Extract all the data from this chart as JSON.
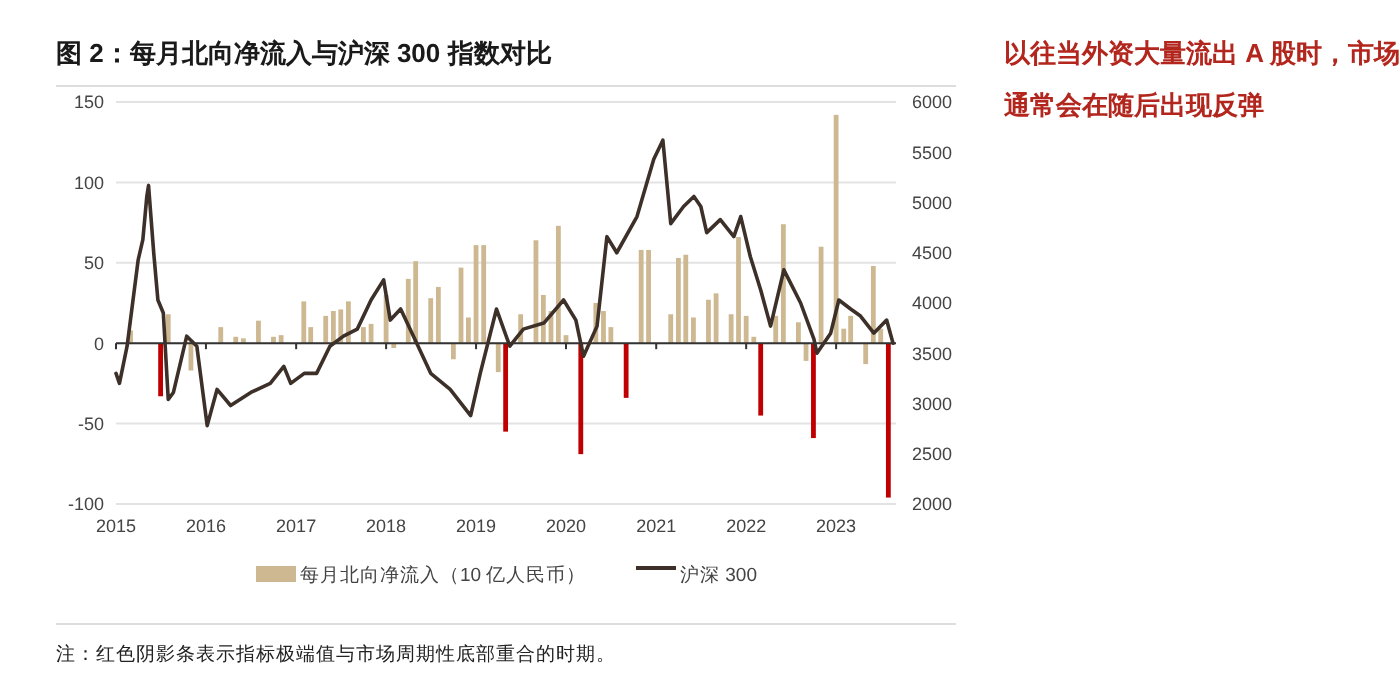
{
  "chart_data": {
    "type": "bar",
    "title": "图 2：每月北向净流入与沪深 300 指数对比",
    "annotations": [
      "以往当外资大量流出 A 股时，市场通常会在随后出现反弹",
      "注：红色阴影条表示指标极端值与市场周期性底部重合的时期。"
    ],
    "xlim": [
      "2015-01",
      "2023-09"
    ],
    "xticks": [
      "2015",
      "2016",
      "2017",
      "2018",
      "2019",
      "2020",
      "2021",
      "2022",
      "2023"
    ],
    "ylim": [
      -100,
      150
    ],
    "yticks": [
      -100,
      -50,
      0,
      50,
      100,
      150
    ],
    "y2lim": [
      2000,
      6000
    ],
    "y2ticks": [
      2000,
      2500,
      3000,
      3500,
      4000,
      4500,
      5000,
      5500,
      6000
    ],
    "grid": "y",
    "legend": "bottom",
    "series": [
      {
        "name": "每月北向净流入（10 亿人民币）",
        "color": "#cdb891",
        "x": [
          "2015-03",
          "2015-07",
          "2015-08",
          "2015-11",
          "2016-03",
          "2016-05",
          "2016-06",
          "2016-08",
          "2016-10",
          "2016-11",
          "2017-02",
          "2017-03",
          "2017-05",
          "2017-06",
          "2017-07",
          "2017-08",
          "2017-10",
          "2017-11",
          "2018-01",
          "2018-02",
          "2018-04",
          "2018-05",
          "2018-07",
          "2018-08",
          "2018-10",
          "2018-11",
          "2018-12",
          "2019-01",
          "2019-02",
          "2019-04",
          "2019-05",
          "2019-07",
          "2019-09",
          "2019-10",
          "2019-11",
          "2019-12",
          "2020-01",
          "2020-03",
          "2020-05",
          "2020-06",
          "2020-07",
          "2020-09",
          "2020-11",
          "2020-12",
          "2021-03",
          "2021-04",
          "2021-05",
          "2021-06",
          "2021-08",
          "2021-09",
          "2021-11",
          "2021-12",
          "2022-01",
          "2022-02",
          "2022-03",
          "2022-05",
          "2022-06",
          "2022-08",
          "2022-09",
          "2022-10",
          "2022-11",
          "2023-01",
          "2023-02",
          "2023-03",
          "2023-05",
          "2023-06",
          "2023-07",
          "2023-08"
        ],
        "values": [
          8,
          -33,
          18,
          -17,
          10,
          4,
          3,
          14,
          4,
          5,
          26,
          10,
          17,
          20,
          21,
          26,
          10,
          12,
          30,
          -3,
          40,
          51,
          28,
          35,
          -10,
          47,
          16,
          61,
          61,
          -18,
          -55,
          18,
          64,
          30,
          20,
          73,
          5,
          -69,
          25,
          20,
          10,
          -34,
          58,
          58,
          18,
          53,
          55,
          16,
          27,
          31,
          18,
          66,
          17,
          4,
          -45,
          17,
          74,
          13,
          -11,
          -59,
          60,
          142,
          9,
          17,
          -13,
          48,
          9,
          -96
        ],
        "colors": [
          "#cdb891",
          "#c00000",
          "#cdb891",
          "#cdb891",
          "#cdb891",
          "#cdb891",
          "#cdb891",
          "#cdb891",
          "#cdb891",
          "#cdb891",
          "#cdb891",
          "#cdb891",
          "#cdb891",
          "#cdb891",
          "#cdb891",
          "#cdb891",
          "#cdb891",
          "#cdb891",
          "#cdb891",
          "#cdb891",
          "#cdb891",
          "#cdb891",
          "#cdb891",
          "#cdb891",
          "#cdb891",
          "#cdb891",
          "#cdb891",
          "#cdb891",
          "#cdb891",
          "#cdb891",
          "#c00000",
          "#cdb891",
          "#cdb891",
          "#cdb891",
          "#cdb891",
          "#cdb891",
          "#cdb891",
          "#c00000",
          "#cdb891",
          "#cdb891",
          "#cdb891",
          "#c00000",
          "#cdb891",
          "#cdb891",
          "#cdb891",
          "#cdb891",
          "#cdb891",
          "#cdb891",
          "#cdb891",
          "#cdb891",
          "#cdb891",
          "#cdb891",
          "#cdb891",
          "#cdb891",
          "#c00000",
          "#cdb891",
          "#cdb891",
          "#cdb891",
          "#cdb891",
          "#c00000",
          "#cdb891",
          "#cdb891",
          "#cdb891",
          "#cdb891",
          "#cdb891",
          "#cdb891",
          "#cdb891",
          "#c00000"
        ]
      },
      {
        "name": "沪深 300",
        "type": "line",
        "axis": "y2",
        "color": "#3d3029",
        "line_style": "solid",
        "marker": "none",
        "x": [
          "2015-01-01",
          "2015-01-15",
          "2015-02-15",
          "2015-04-01",
          "2015-04-20",
          "2015-05-06",
          "2015-05-13",
          "2015-06-03",
          "2015-06-20",
          "2015-07-12",
          "2015-08-01",
          "2015-08-22",
          "2015-10-15",
          "2015-11-25",
          "2016-01-06",
          "2016-02-15",
          "2016-04-10",
          "2016-07-01",
          "2016-09-18",
          "2016-11-12",
          "2016-12-10",
          "2017-02-03",
          "2017-03-25",
          "2017-05-18",
          "2017-07-12",
          "2017-09-06",
          "2017-11-01",
          "2017-12-22",
          "2018-01-18",
          "2018-03-01",
          "2018-04-22",
          "2018-07-01",
          "2018-09-18",
          "2018-12-10",
          "2019-01-18",
          "2019-03-25",
          "2019-05-18",
          "2019-07-12",
          "2019-10-03",
          "2019-12-22",
          "2020-02-10",
          "2020-03-12",
          "2020-05-06",
          "2020-06-15",
          "2020-07-25",
          "2020-10-15",
          "2020-12-22",
          "2021-01-28",
          "2021-03-01",
          "2021-04-22",
          "2021-06-03",
          "2021-07-01",
          "2021-07-25",
          "2021-09-18",
          "2021-11-12",
          "2021-12-10",
          "2022-01-18",
          "2022-03-01",
          "2022-04-10",
          "2022-06-03",
          "2022-08-10",
          "2022-10-03",
          "2022-10-15",
          "2022-12-10",
          "2023-01-12",
          "2023-03-01",
          "2023-04-10",
          "2023-06-03",
          "2023-07-25",
          "2023-08-20"
        ],
        "values": [
          3300,
          3200,
          3570,
          4430,
          4630,
          5060,
          5170,
          4500,
          4030,
          3900,
          3040,
          3110,
          3670,
          3570,
          2780,
          3140,
          2980,
          3110,
          3200,
          3370,
          3200,
          3300,
          3300,
          3570,
          3670,
          3740,
          4030,
          4230,
          3830,
          3940,
          3670,
          3300,
          3140,
          2880,
          3300,
          3940,
          3570,
          3740,
          3800,
          4030,
          3830,
          3470,
          3770,
          4660,
          4500,
          4860,
          5430,
          5620,
          4790,
          4960,
          5060,
          4960,
          4700,
          4830,
          4660,
          4860,
          4460,
          4130,
          3770,
          4330,
          4000,
          3640,
          3500,
          3700,
          4030,
          3940,
          3870,
          3700,
          3830,
          3600
        ]
      }
    ]
  }
}
